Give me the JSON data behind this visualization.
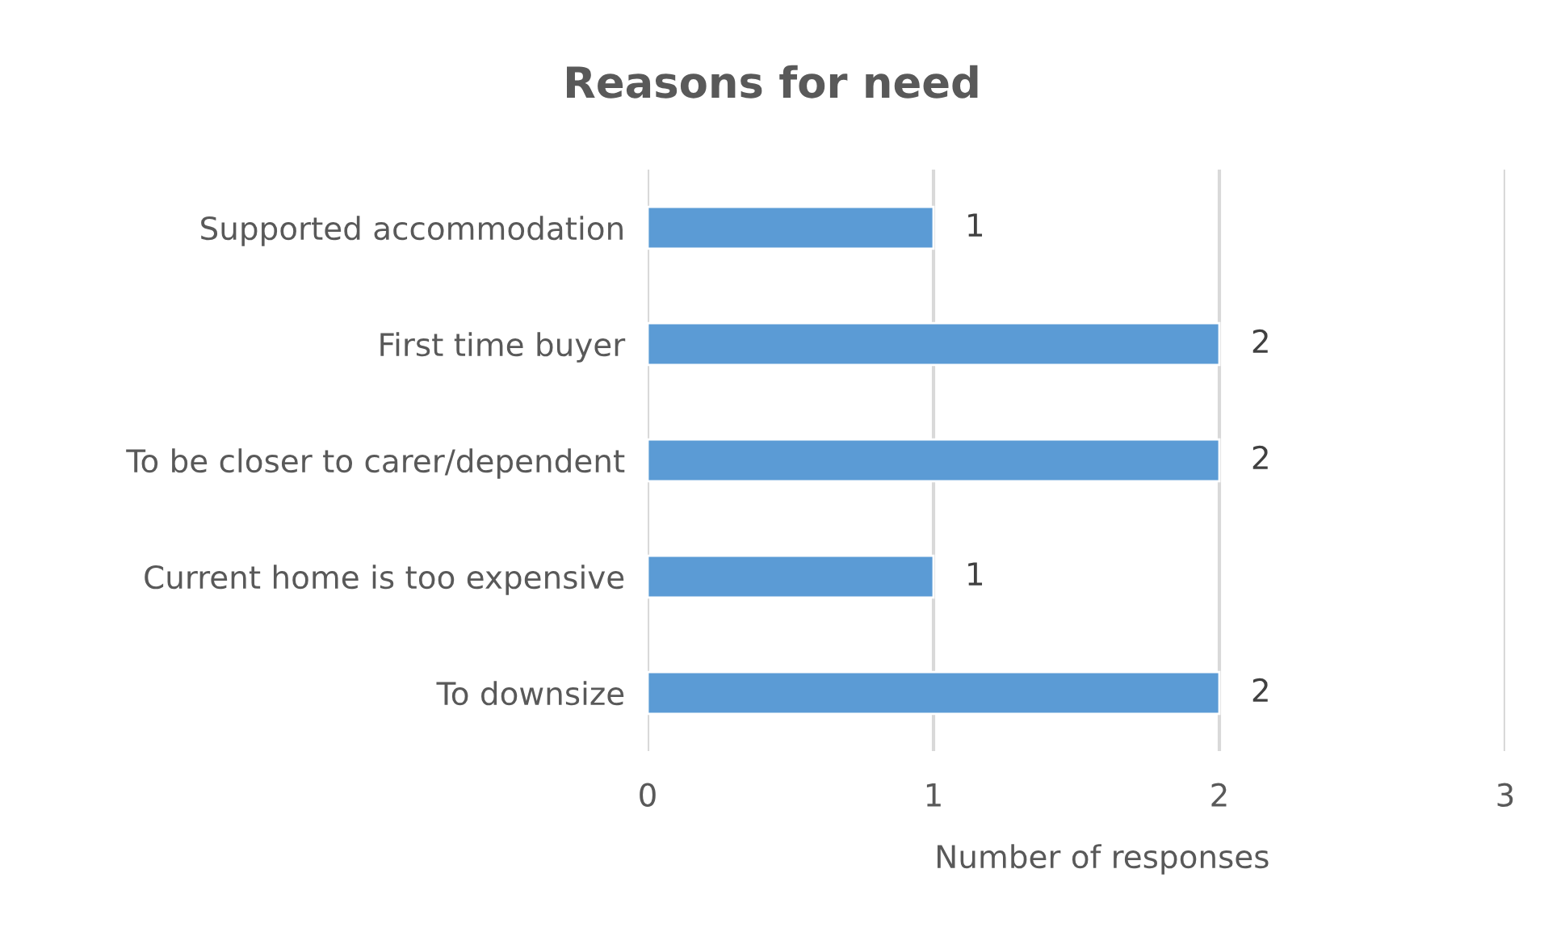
{
  "chart_data": {
    "type": "bar",
    "orientation": "horizontal",
    "title": "Reasons for need",
    "xlabel": "Number of responses",
    "categories": [
      "Supported accommodation",
      "First time buyer",
      "To be closer to carer/dependent",
      "Current home is too expensive",
      "To downsize"
    ],
    "values": [
      1,
      2,
      2,
      1,
      2
    ],
    "color": "#5b9bd5",
    "xlim": [
      0,
      3
    ],
    "xticks": [
      0,
      1,
      2,
      3
    ],
    "grid": "x",
    "data_labels": true,
    "legend": false
  }
}
